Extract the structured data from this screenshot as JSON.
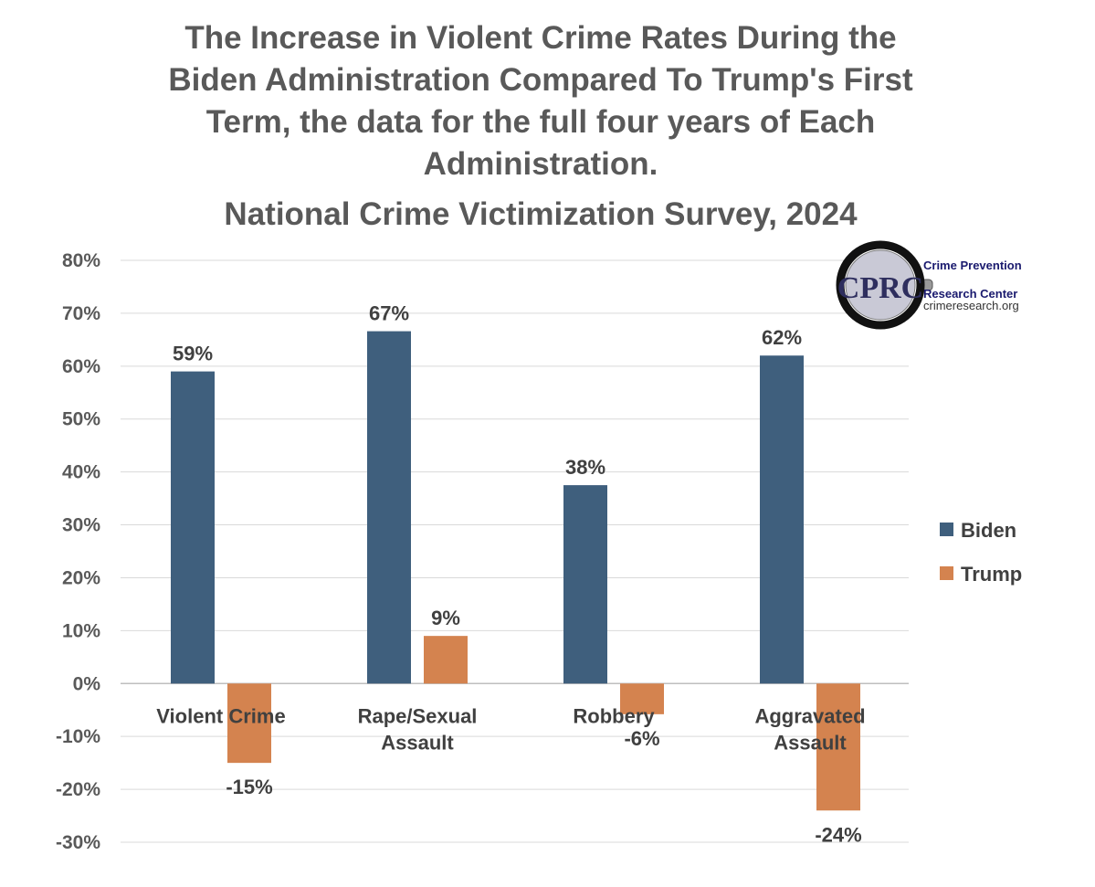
{
  "colors": {
    "biden": "#3f5f7d",
    "trump": "#d4834f",
    "title": "#595959",
    "axis_text": "#595959",
    "label_text": "#404040",
    "grid": "#d9d9d9"
  },
  "logo": {
    "initials": "CPRC",
    "name_line1": "Crime Prevention",
    "name_line2": "Research Center",
    "url": "crimeresearch.org",
    "icon": "magnifying-glass-icon"
  },
  "chart_data": {
    "type": "bar",
    "title_lines": [
      "The Increase in Violent Crime Rates During the",
      "Biden Administration Compared To Trump's First",
      "Term, the data for the full four years of Each",
      "Administration.",
      "National Crime Victimization Survey, 2024"
    ],
    "categories": [
      [
        "Violent Crime"
      ],
      [
        "Rape/Sexual",
        "Assault"
      ],
      [
        "Robbery"
      ],
      [
        "Aggravated",
        "Assault"
      ]
    ],
    "series": [
      {
        "name": "Biden",
        "values": [
          59,
          66.6,
          37.5,
          62
        ],
        "labels": [
          "59%",
          "67%",
          "38%",
          "62%"
        ]
      },
      {
        "name": "Trump",
        "values": [
          -15,
          9,
          -5.8,
          -24
        ],
        "labels": [
          "-15%",
          "9%",
          "-6%",
          "-24%"
        ]
      }
    ],
    "ylim": [
      -30,
      80
    ],
    "yticks": [
      80,
      70,
      60,
      50,
      40,
      30,
      20,
      10,
      0,
      -10,
      -20,
      -30
    ],
    "ytick_labels": [
      "80%",
      "70%",
      "60%",
      "50%",
      "40%",
      "30%",
      "20%",
      "10%",
      "0%",
      "-10%",
      "-20%",
      "-30%"
    ],
    "xlabel": "",
    "ylabel": "",
    "grid": true,
    "legend_position": "right"
  }
}
